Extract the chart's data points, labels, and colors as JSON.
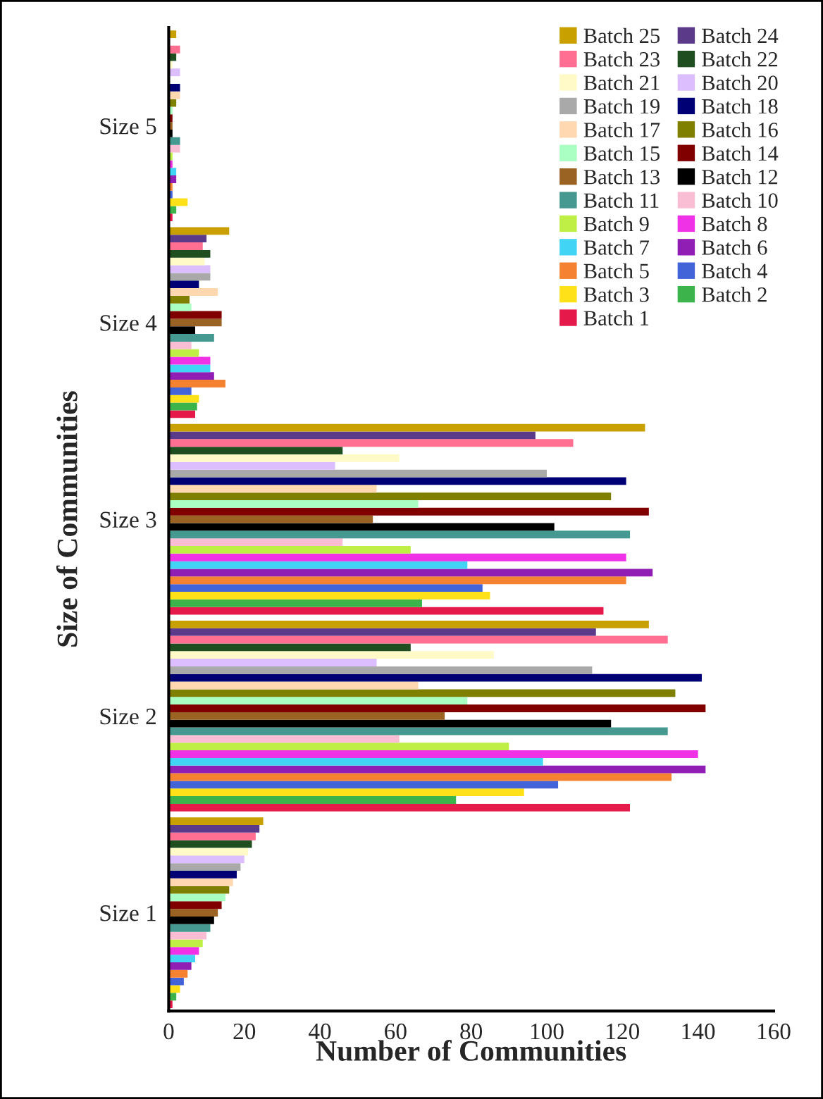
{
  "chart_data": {
    "type": "bar",
    "orientation": "horizontal",
    "xlabel": "Number of Communities",
    "ylabel": "Size of Communities",
    "categories": [
      "Size 5",
      "Size 4",
      "Size 3",
      "Size 2",
      "Size 1"
    ],
    "xlim": [
      0,
      160
    ],
    "xticks": [
      0,
      20,
      40,
      60,
      80,
      100,
      120,
      140,
      160
    ],
    "grid": false,
    "legend": "top right",
    "series": [
      {
        "name": "Batch 1",
        "color": "#e6194b",
        "values": [
          1,
          7,
          115,
          122,
          1
        ]
      },
      {
        "name": "Batch 2",
        "color": "#3cb44b",
        "values": [
          2,
          7.5,
          67,
          76,
          2
        ]
      },
      {
        "name": "Batch 3",
        "color": "#ffe119",
        "values": [
          5,
          8,
          85,
          94,
          3
        ]
      },
      {
        "name": "Batch 4",
        "color": "#4363d8",
        "values": [
          1,
          6,
          83,
          103,
          4
        ]
      },
      {
        "name": "Batch 5",
        "color": "#f58231",
        "values": [
          1,
          15,
          121,
          133,
          5
        ]
      },
      {
        "name": "Batch 6",
        "color": "#911eb4",
        "values": [
          2,
          12,
          128,
          142,
          6
        ]
      },
      {
        "name": "Batch 7",
        "color": "#42d4f4",
        "values": [
          2,
          11,
          79,
          99,
          7
        ]
      },
      {
        "name": "Batch 8",
        "color": "#f032e6",
        "values": [
          1,
          11,
          121,
          140,
          8
        ]
      },
      {
        "name": "Batch 9",
        "color": "#bfef45",
        "values": [
          1,
          8,
          64,
          90,
          9
        ]
      },
      {
        "name": "Batch 10",
        "color": "#fabed4",
        "values": [
          3,
          6,
          46,
          61,
          10
        ]
      },
      {
        "name": "Batch 11",
        "color": "#469990",
        "values": [
          3,
          12,
          122,
          132,
          11
        ]
      },
      {
        "name": "Batch 12",
        "color": "#000000",
        "values": [
          1,
          7,
          102,
          117,
          12
        ]
      },
      {
        "name": "Batch 13",
        "color": "#9a6324",
        "values": [
          1,
          14,
          54,
          73,
          13
        ]
      },
      {
        "name": "Batch 14",
        "color": "#800000",
        "values": [
          1,
          14,
          127,
          142,
          14
        ]
      },
      {
        "name": "Batch 15",
        "color": "#aaffc3",
        "values": [
          1,
          6,
          66,
          79,
          15
        ]
      },
      {
        "name": "Batch 16",
        "color": "#808000",
        "values": [
          2,
          5.5,
          117,
          134,
          16
        ]
      },
      {
        "name": "Batch 17",
        "color": "#ffd8b1",
        "values": [
          3,
          13,
          55,
          66,
          17
        ]
      },
      {
        "name": "Batch 18",
        "color": "#000075",
        "values": [
          3,
          8,
          121,
          141,
          18
        ]
      },
      {
        "name": "Batch 19",
        "color": "#a9a9a9",
        "values": [
          0,
          11,
          100,
          112,
          19
        ]
      },
      {
        "name": "Batch 20",
        "color": "#dcbeff",
        "values": [
          3,
          11,
          44,
          55,
          20
        ]
      },
      {
        "name": "Batch 21",
        "color": "#fffac8",
        "values": [
          1,
          9.5,
          61,
          86,
          21
        ]
      },
      {
        "name": "Batch 22",
        "color": "#1f4e20",
        "values": [
          2,
          11,
          46,
          64,
          22
        ]
      },
      {
        "name": "Batch 23",
        "color": "#ff6f91",
        "values": [
          3,
          9,
          107,
          132,
          23
        ]
      },
      {
        "name": "Batch 24",
        "color": "#5b3a8a",
        "values": [
          0,
          10,
          97,
          113,
          24
        ]
      },
      {
        "name": "Batch 25",
        "color": "#c8a000",
        "values": [
          2,
          16,
          126,
          127,
          25
        ]
      }
    ]
  }
}
